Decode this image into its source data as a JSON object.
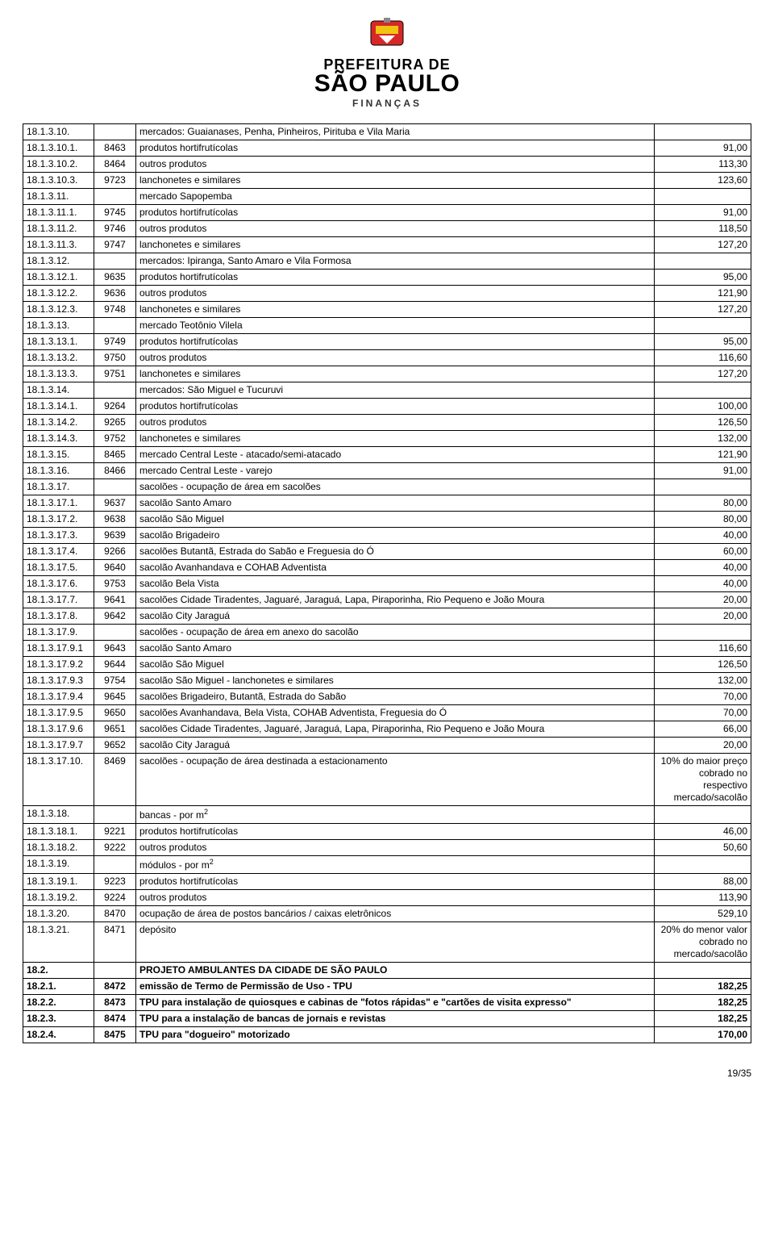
{
  "header": {
    "line1": "PREFEITURA DE",
    "line2": "SÃO PAULO",
    "line3": "FINANÇAS"
  },
  "footer": {
    "page": "19/35"
  },
  "table": {
    "colors": {
      "border": "#000000",
      "background": "#ffffff",
      "text": "#000000"
    },
    "font_size_pt": 9,
    "rows": [
      {
        "c1": "18.1.3.10.",
        "c2": "",
        "c3": "mercados: Guaianases, Penha, Pinheiros,  Pirituba e  Vila Maria",
        "c4": ""
      },
      {
        "c1": "18.1.3.10.1.",
        "c2": "8463",
        "c3": "produtos hortifrutícolas",
        "c4": "91,00"
      },
      {
        "c1": "18.1.3.10.2.",
        "c2": "8464",
        "c3": "outros produtos",
        "c4": "113,30"
      },
      {
        "c1": "18.1.3.10.3.",
        "c2": "9723",
        "c3": "lanchonetes e similares",
        "c4": "123,60"
      },
      {
        "c1": "18.1.3.11.",
        "c2": "",
        "c3": "mercado  Sapopemba",
        "c4": ""
      },
      {
        "c1": "18.1.3.11.1.",
        "c2": "9745",
        "c3": "produtos hortifrutícolas",
        "c4": "91,00"
      },
      {
        "c1": "18.1.3.11.2.",
        "c2": "9746",
        "c3": "outros produtos",
        "c4": "118,50"
      },
      {
        "c1": "18.1.3.11.3.",
        "c2": "9747",
        "c3": "lanchonetes e similares",
        "c4": "127,20"
      },
      {
        "c1": "18.1.3.12.",
        "c2": "",
        "c3": "mercados: Ipiranga,  Santo Amaro e Vila Formosa",
        "c4": ""
      },
      {
        "c1": "18.1.3.12.1.",
        "c2": "9635",
        "c3": "produtos hortifrutícolas",
        "c4": "95,00"
      },
      {
        "c1": "18.1.3.12.2.",
        "c2": "9636",
        "c3": "outros produtos",
        "c4": "121,90"
      },
      {
        "c1": "18.1.3.12.3.",
        "c2": "9748",
        "c3": "lanchonetes e similares",
        "c4": "127,20"
      },
      {
        "c1": "18.1.3.13.",
        "c2": "",
        "c3": "mercado Teotônio Vilela",
        "c4": ""
      },
      {
        "c1": "18.1.3.13.1.",
        "c2": "9749",
        "c3": "produtos hortifrutícolas",
        "c4": "95,00"
      },
      {
        "c1": "18.1.3.13.2.",
        "c2": "9750",
        "c3": "outros produtos",
        "c4": "116,60"
      },
      {
        "c1": "18.1.3.13.3.",
        "c2": "9751",
        "c3": "lanchonetes e similares",
        "c4": "127,20"
      },
      {
        "c1": "18.1.3.14.",
        "c2": "",
        "c3": "mercados: São Miguel e Tucuruvi",
        "c4": ""
      },
      {
        "c1": "18.1.3.14.1.",
        "c2": "9264",
        "c3": "produtos hortifrutícolas",
        "c4": "100,00"
      },
      {
        "c1": "18.1.3.14.2.",
        "c2": "9265",
        "c3": "outros produtos",
        "c4": "126,50"
      },
      {
        "c1": "18.1.3.14.3.",
        "c2": "9752",
        "c3": "lanchonetes e similares",
        "c4": "132,00"
      },
      {
        "c1": "18.1.3.15.",
        "c2": "8465",
        "c3": "mercado Central Leste  - atacado/semi-atacado",
        "c4": "121,90"
      },
      {
        "c1": "18.1.3.16.",
        "c2": "8466",
        "c3": "mercado Central Leste - varejo",
        "c4": "91,00"
      },
      {
        "c1": "18.1.3.17.",
        "c2": "",
        "c3": "sacolões - ocupação de área em sacolões",
        "c4": ""
      },
      {
        "c1": "18.1.3.17.1.",
        "c2": "9637",
        "c3": "sacolão Santo Amaro",
        "c4": "80,00"
      },
      {
        "c1": "18.1.3.17.2.",
        "c2": "9638",
        "c3": "sacolão São Miguel",
        "c4": "80,00"
      },
      {
        "c1": "18.1.3.17.3.",
        "c2": "9639",
        "c3": "sacolão Brigadeiro",
        "c4": "40,00"
      },
      {
        "c1": "18.1.3.17.4.",
        "c2": "9266",
        "c3": "sacolões Butantã, Estrada do Sabão e Freguesia do Ó",
        "c4": "60,00"
      },
      {
        "c1": "18.1.3.17.5.",
        "c2": "9640",
        "c3": "sacolão Avanhandava e COHAB Adventista",
        "c4": "40,00"
      },
      {
        "c1": "18.1.3.17.6.",
        "c2": "9753",
        "c3": "sacolão Bela Vista",
        "c4": "40,00"
      },
      {
        "c1": "18.1.3.17.7.",
        "c2": "9641",
        "c3": "sacolões Cidade Tiradentes, Jaguaré, Jaraguá, Lapa, Piraporinha, Rio Pequeno e João Moura",
        "c4": "20,00"
      },
      {
        "c1": "18.1.3.17.8.",
        "c2": "9642",
        "c3": "sacolão City Jaraguá",
        "c4": "20,00"
      },
      {
        "c1": "18.1.3.17.9.",
        "c2": "",
        "c3": "sacolões  - ocupação de área em anexo do sacolão",
        "c4": ""
      },
      {
        "c1": "18.1.3.17.9.1",
        "c2": "9643",
        "c3": "sacolão Santo Amaro",
        "c4": "116,60"
      },
      {
        "c1": "18.1.3.17.9.2",
        "c2": "9644",
        "c3": "sacolão São Miguel",
        "c4": "126,50"
      },
      {
        "c1": "18.1.3.17.9.3",
        "c2": "9754",
        "c3": "sacolão São Miguel - lanchonetes e similares",
        "c4": "132,00"
      },
      {
        "c1": "18.1.3.17.9.4",
        "c2": "9645",
        "c3": "sacolões Brigadeiro, Butantã, Estrada do Sabão",
        "c4": "70,00"
      },
      {
        "c1": "18.1.3.17.9.5",
        "c2": "9650",
        "c3": "sacolões Avanhandava, Bela Vista, COHAB Adventista, Freguesia do Ó",
        "c4": "70,00"
      },
      {
        "c1": "18.1.3.17.9.6",
        "c2": "9651",
        "c3": "sacolões Cidade Tiradentes, Jaguaré, Jaraguá, Lapa, Piraporinha, Rio Pequeno e João Moura",
        "c4": "66,00"
      },
      {
        "c1": "18.1.3.17.9.7",
        "c2": "9652",
        "c3": "sacolão City Jaraguá",
        "c4": "20,00"
      },
      {
        "c1": "18.1.3.17.10.",
        "c2": "8469",
        "c3": "sacolões - ocupação de área destinada a estacionamento",
        "c4": "10% do maior preço cobrado no respectivo mercado/sacolão"
      },
      {
        "c1": "18.1.3.18.",
        "c2": "",
        "c3_html": "bancas - por m<sup>2</sup>",
        "c4": ""
      },
      {
        "c1": "18.1.3.18.1.",
        "c2": "9221",
        "c3": "produtos hortifrutícolas",
        "c4": "46,00"
      },
      {
        "c1": "18.1.3.18.2.",
        "c2": "9222",
        "c3": "outros produtos",
        "c4": "50,60"
      },
      {
        "c1": "18.1.3.19.",
        "c2": "",
        "c3_html": "módulos - por m<sup>2</sup>",
        "c4": ""
      },
      {
        "c1": "18.1.3.19.1.",
        "c2": "9223",
        "c3": "produtos hortifrutícolas",
        "c4": "88,00"
      },
      {
        "c1": "18.1.3.19.2.",
        "c2": "9224",
        "c3": "outros produtos",
        "c4": "113,90"
      },
      {
        "c1": "18.1.3.20.",
        "c2": "8470",
        "c3": "ocupação de área de postos bancários / caixas eletrônicos",
        "c4": "529,10"
      },
      {
        "c1": "18.1.3.21.",
        "c2": "8471",
        "c3": "depósito",
        "c4": "20% do menor valor cobrado no mercado/sacolão"
      },
      {
        "c1": "18.2.",
        "c2": "",
        "c3": "PROJETO AMBULANTES DA CIDADE DE SÃO PAULO",
        "c4": "",
        "bold": true
      },
      {
        "c1": "18.2.1.",
        "c2": "8472",
        "c3": "emissão de Termo de Permissão de Uso - TPU",
        "c4": "182,25",
        "bold": true
      },
      {
        "c1": "18.2.2.",
        "c2": "8473",
        "c3": "TPU para instalação de quiosques e cabinas de \"fotos rápidas\" e \"cartões de visita expresso\"",
        "c4": "182,25",
        "bold": true
      },
      {
        "c1": "18.2.3.",
        "c2": "8474",
        "c3": "TPU para a instalação de bancas de jornais e revistas",
        "c4": "182,25",
        "bold": true
      },
      {
        "c1": "18.2.4.",
        "c2": "8475",
        "c3": "TPU para  \"dogueiro\"  motorizado",
        "c4": "170,00",
        "bold": true
      }
    ]
  }
}
